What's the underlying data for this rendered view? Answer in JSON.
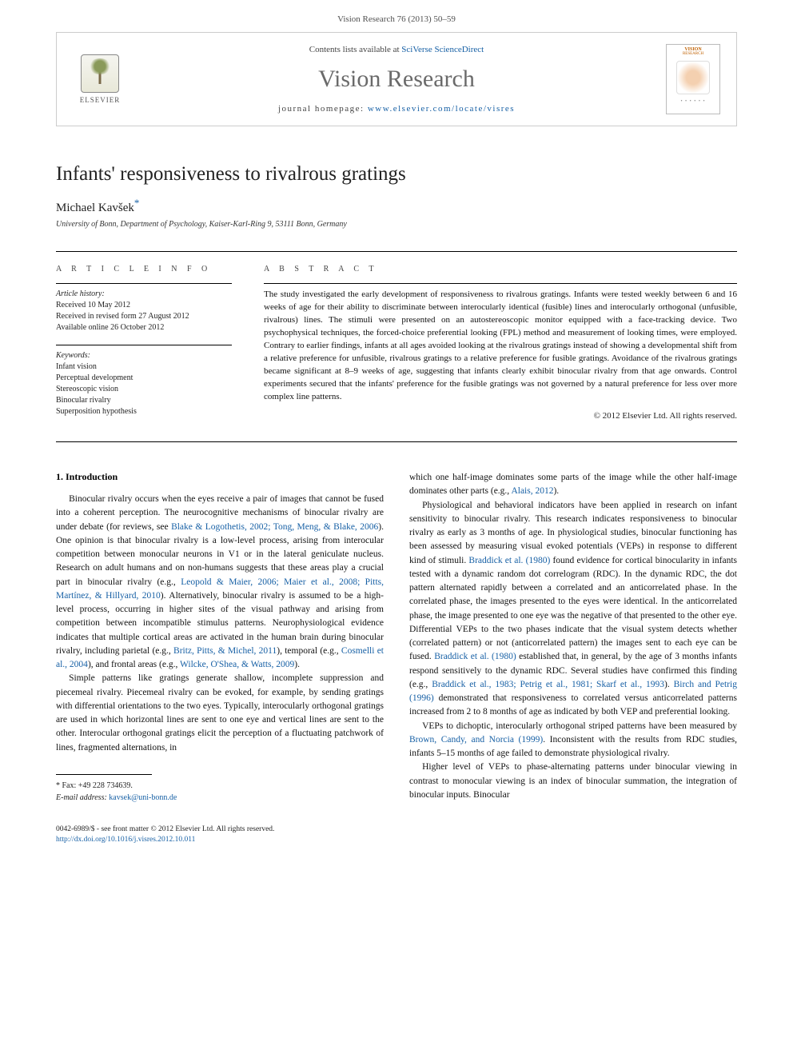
{
  "header": {
    "citation": "Vision Research 76 (2013) 50–59",
    "contents_prefix": "Contents lists available at ",
    "contents_link": "SciVerse ScienceDirect",
    "journal": "Vision Research",
    "homepage_prefix": "journal homepage: ",
    "homepage_link": "www.elsevier.com/locate/visres",
    "publisher": "ELSEVIER",
    "cover": {
      "t1": "VISION",
      "t2": "RESEARCH"
    }
  },
  "article": {
    "title": "Infants' responsiveness to rivalrous gratings",
    "author": "Michael Kavšek",
    "star": "*",
    "affiliation": "University of Bonn, Department of Psychology, Kaiser-Karl-Ring 9, 53111 Bonn, Germany"
  },
  "info": {
    "heading": "A R T I C L E   I N F O",
    "history_label": "Article history:",
    "history": [
      "Received 10 May 2012",
      "Received in revised form 27 August 2012",
      "Available online 26 October 2012"
    ],
    "keywords_label": "Keywords:",
    "keywords": [
      "Infant vision",
      "Perceptual development",
      "Stereoscopic vision",
      "Binocular rivalry",
      "Superposition hypothesis"
    ]
  },
  "abstract": {
    "heading": "A B S T R A C T",
    "text": "The study investigated the early development of responsiveness to rivalrous gratings. Infants were tested weekly between 6 and 16 weeks of age for their ability to discriminate between interocularly identical (fusible) lines and interocularly orthogonal (unfusible, rivalrous) lines. The stimuli were presented on an autostereoscopic monitor equipped with a face-tracking device. Two psychophysical techniques, the forced-choice preferential looking (FPL) method and measurement of looking times, were employed. Contrary to earlier findings, infants at all ages avoided looking at the rivalrous gratings instead of showing a developmental shift from a relative preference for unfusible, rivalrous gratings to a relative preference for fusible gratings. Avoidance of the rivalrous gratings became significant at 8–9 weeks of age, suggesting that infants clearly exhibit binocular rivalry from that age onwards. Control experiments secured that the infants' preference for the fusible gratings was not governed by a natural preference for less over more complex line patterns.",
    "copyright": "© 2012 Elsevier Ltd. All rights reserved."
  },
  "body": {
    "section_heading": "1. Introduction",
    "left": [
      {
        "plain": "Binocular rivalry occurs when the eyes receive a pair of images that cannot be fused into a coherent perception. The neurocognitive mechanisms of binocular rivalry are under debate (for reviews, see ",
        "link": "Blake & Logothetis, 2002; Tong, Meng, & Blake, 2006",
        "tail": "). One opinion is that binocular rivalry is a low-level process, arising from interocular competition between monocular neurons in V1 or in the lateral geniculate nucleus. Research on adult humans and on non-humans suggests that these areas play a crucial part in binocular rivalry (e.g., ",
        "link2": "Leopold & Maier, 2006; Maier et al., 2008; Pitts, Martínez, & Hillyard, 2010",
        "tail2": "). Alternatively, binocular rivalry is assumed to be a high-level process, occurring in higher sites of the visual pathway and arising from competition between incompatible stimulus patterns. Neurophysiological evidence indicates that multiple cortical areas are activated in the human brain during binocular rivalry, including parietal (e.g., ",
        "link3": "Britz, Pitts, & Michel, 2011",
        "tail3": "), temporal (e.g., ",
        "link4": "Cosmelli et al., 2004",
        "tail4": "), and frontal areas (e.g., ",
        "link5": "Wilcke, O'Shea, & Watts, 2009",
        "tail5": ")."
      },
      {
        "plain": "Simple patterns like gratings generate shallow, incomplete suppression and piecemeal rivalry. Piecemeal rivalry can be evoked, for example, by sending gratings with differential orientations to the two eyes. Typically, interocularly orthogonal gratings are used in which horizontal lines are sent to one eye and vertical lines are sent to the other. Interocular orthogonal gratings elicit the perception of a fluctuating patchwork of lines, fragmented alternations, in"
      }
    ],
    "right": [
      {
        "plain": "which one half-image dominates some parts of the image while the other half-image dominates other parts (e.g., ",
        "link": "Alais, 2012",
        "tail": ")."
      },
      {
        "plain": "Physiological and behavioral indicators have been applied in research on infant sensitivity to binocular rivalry. This research indicates responsiveness to binocular rivalry as early as 3 months of age. In physiological studies, binocular functioning has been assessed by measuring visual evoked potentials (VEPs) in response to different kind of stimuli. ",
        "link": "Braddick et al. (1980)",
        "tail": " found evidence for cortical binocularity in infants tested with a dynamic random dot correlogram (RDC). In the dynamic RDC, the dot pattern alternated rapidly between a correlated and an anticorrelated phase. In the correlated phase, the images presented to the eyes were identical. In the anticorrelated phase, the image presented to one eye was the negative of that presented to the other eye. Differential VEPs to the two phases indicate that the visual system detects whether (correlated pattern) or not (anticorrelated pattern) the images sent to each eye can be fused. ",
        "link2": "Braddick et al. (1980)",
        "tail2": " established that, in general, by the age of 3 months infants respond sensitively to the dynamic RDC. Several studies have confirmed this finding (e.g., ",
        "link3": "Braddick et al., 1983; Petrig et al., 1981; Skarf et al., 1993",
        "tail3": "). ",
        "link4": "Birch and Petrig (1996)",
        "tail4": " demonstrated that responsiveness to correlated versus anticorrelated patterns increased from 2 to 8 months of age as indicated by both VEP and preferential looking."
      },
      {
        "plain": "VEPs to dichoptic, interocularly orthogonal striped patterns have been measured by ",
        "link": "Brown, Candy, and Norcia (1999)",
        "tail": ". Inconsistent with the results from RDC studies, infants 5–15 months of age failed to demonstrate physiological rivalry."
      },
      {
        "plain": "Higher level of VEPs to phase-alternating patterns under binocular viewing in contrast to monocular viewing is an index of binocular summation, the integration of binocular inputs. Binocular"
      }
    ]
  },
  "footnote": {
    "fax_label": "* Fax: +49 228 734639.",
    "email_label": "E-mail address:",
    "email": "kavsek@uni-bonn.de"
  },
  "footer": {
    "line1": "0042-6989/$ - see front matter © 2012 Elsevier Ltd. All rights reserved.",
    "doi": "http://dx.doi.org/10.1016/j.visres.2012.10.011"
  }
}
